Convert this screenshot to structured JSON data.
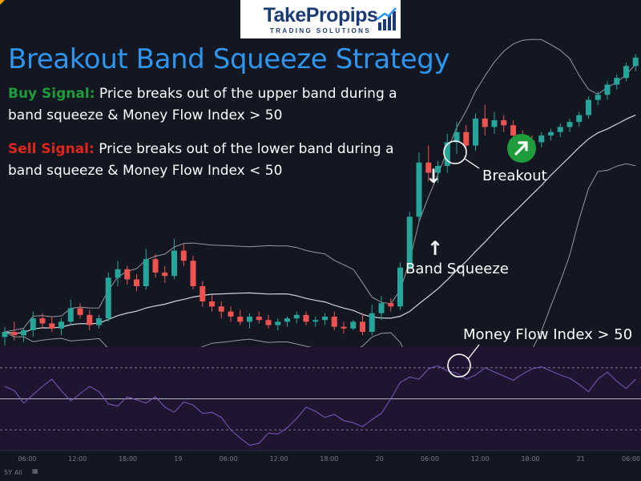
{
  "logo": {
    "brand": "TakePropips",
    "tagline": "TRADING SOLUTIONS"
  },
  "title": "Breakout Band Squeeze Strategy",
  "buy": {
    "label": "Buy Signal:",
    "text": " Price breaks out of the upper band during a band squeeze & Money Flow Index > 50"
  },
  "sell": {
    "label": "Sell Signal:",
    "text": " Price breaks out of the lower band during a band squeeze & Money Flow Index < 50"
  },
  "annotations": {
    "breakout": "Breakout",
    "band_squeeze": "Band Squeeze",
    "mfi": "Money Flow Index > 50"
  },
  "timeframes": {
    "d": "5Y",
    "all": "All"
  },
  "chart_data": [
    {
      "type": "candlestick",
      "title": "",
      "colors": {
        "up": "#26a69a",
        "down": "#ef5350",
        "bands": "#9598a1",
        "middle": "#d1d4dc",
        "background": "#131722"
      },
      "y_axis_visible": false,
      "x_ticks": [
        "06:00",
        "12:00",
        "18:00",
        "19",
        "06:00",
        "12:00",
        "18:00",
        "20",
        "06:00",
        "12:00",
        "18:00",
        "21",
        "06:00"
      ],
      "ohlc": [
        [
          10.1,
          10.7,
          9.6,
          10.4
        ],
        [
          10.4,
          11.0,
          9.9,
          10.2
        ],
        [
          10.2,
          10.6,
          9.8,
          10.5
        ],
        [
          10.5,
          11.6,
          10.1,
          11.2
        ],
        [
          11.2,
          11.5,
          10.6,
          10.9
        ],
        [
          10.9,
          11.3,
          10.4,
          10.6
        ],
        [
          10.6,
          11.2,
          10.2,
          11.0
        ],
        [
          11.0,
          12.3,
          10.8,
          11.8
        ],
        [
          11.8,
          12.1,
          11.2,
          11.4
        ],
        [
          11.4,
          11.7,
          10.5,
          10.8
        ],
        [
          10.8,
          11.4,
          10.6,
          11.2
        ],
        [
          11.2,
          13.9,
          11.0,
          13.6
        ],
        [
          13.6,
          14.6,
          13.1,
          14.1
        ],
        [
          14.1,
          14.3,
          13.2,
          13.5
        ],
        [
          13.5,
          13.8,
          12.8,
          13.1
        ],
        [
          13.1,
          15.3,
          12.9,
          14.7
        ],
        [
          14.7,
          15.0,
          13.6,
          13.9
        ],
        [
          13.9,
          14.3,
          13.3,
          13.7
        ],
        [
          13.7,
          15.9,
          13.5,
          15.2
        ],
        [
          15.2,
          15.6,
          14.3,
          14.6
        ],
        [
          14.6,
          14.9,
          12.9,
          13.1
        ],
        [
          13.1,
          13.4,
          11.9,
          12.2
        ],
        [
          12.2,
          12.6,
          11.6,
          11.9
        ],
        [
          11.9,
          12.2,
          11.2,
          11.6
        ],
        [
          11.6,
          11.9,
          11.0,
          11.3
        ],
        [
          11.3,
          11.7,
          10.8,
          11.0
        ],
        [
          11.0,
          11.5,
          10.6,
          11.3
        ],
        [
          11.3,
          11.6,
          10.9,
          11.1
        ],
        [
          11.1,
          11.4,
          10.6,
          10.8
        ],
        [
          10.8,
          11.2,
          10.5,
          11.0
        ],
        [
          11.0,
          11.3,
          10.7,
          11.2
        ],
        [
          11.2,
          11.6,
          10.9,
          11.4
        ],
        [
          11.4,
          11.6,
          10.8,
          11.0
        ],
        [
          11.0,
          11.3,
          10.7,
          11.1
        ],
        [
          11.1,
          11.5,
          10.8,
          11.3
        ],
        [
          11.3,
          11.6,
          10.5,
          10.7
        ],
        [
          10.7,
          11.0,
          10.3,
          10.6
        ],
        [
          10.6,
          11.1,
          10.5,
          11.0
        ],
        [
          11.0,
          11.5,
          10.2,
          10.4
        ],
        [
          10.4,
          12.0,
          10.2,
          11.5
        ],
        [
          11.5,
          12.5,
          11.1,
          12.1
        ],
        [
          12.1,
          12.4,
          11.6,
          11.9
        ],
        [
          11.9,
          14.5,
          11.7,
          14.2
        ],
        [
          14.2,
          17.5,
          14.0,
          17.2
        ],
        [
          17.2,
          21.0,
          16.9,
          20.4
        ],
        [
          20.4,
          21.4,
          19.3,
          19.8
        ],
        [
          19.8,
          20.5,
          19.2,
          20.2
        ],
        [
          20.2,
          22.1,
          19.8,
          21.6
        ],
        [
          21.6,
          22.8,
          20.9,
          22.2
        ],
        [
          22.2,
          22.6,
          21.0,
          21.4
        ],
        [
          21.4,
          23.3,
          21.1,
          23.0
        ],
        [
          23.0,
          23.8,
          22.0,
          22.5
        ],
        [
          22.5,
          23.4,
          22.1,
          22.9
        ],
        [
          22.9,
          23.2,
          22.2,
          22.6
        ],
        [
          22.6,
          22.9,
          21.7,
          22.0
        ],
        [
          22.0,
          22.3,
          21.4,
          21.7
        ],
        [
          21.7,
          22.0,
          21.3,
          21.6
        ],
        [
          21.6,
          22.2,
          21.3,
          22.0
        ],
        [
          22.0,
          22.4,
          21.7,
          22.2
        ],
        [
          22.2,
          22.7,
          21.9,
          22.5
        ],
        [
          22.5,
          23.0,
          22.2,
          22.8
        ],
        [
          22.8,
          23.4,
          22.5,
          23.2
        ],
        [
          23.2,
          24.3,
          23.0,
          24.1
        ],
        [
          24.1,
          24.6,
          23.8,
          24.4
        ],
        [
          24.4,
          25.2,
          24.1,
          25.0
        ],
        [
          25.0,
          25.6,
          24.7,
          25.4
        ],
        [
          25.4,
          26.3,
          25.2,
          26.1
        ],
        [
          26.1,
          26.8,
          25.8,
          26.6
        ]
      ],
      "mfi": [
        62,
        58,
        46,
        54,
        62,
        69,
        58,
        48,
        55,
        62,
        57,
        45,
        43,
        52,
        49,
        46,
        52,
        42,
        37,
        47,
        44,
        36,
        37,
        32,
        20,
        12,
        5,
        7,
        17,
        16,
        22,
        31,
        42,
        38,
        32,
        35,
        29,
        27,
        23,
        30,
        36,
        50,
        66,
        71,
        69,
        79,
        82,
        77,
        75,
        69,
        73,
        80,
        76,
        72,
        68,
        74,
        79,
        81,
        77,
        73,
        70,
        64,
        57,
        69,
        76,
        67,
        60,
        69
      ],
      "mfi_levels": [
        80,
        20
      ],
      "mfi_midline": 50
    }
  ]
}
